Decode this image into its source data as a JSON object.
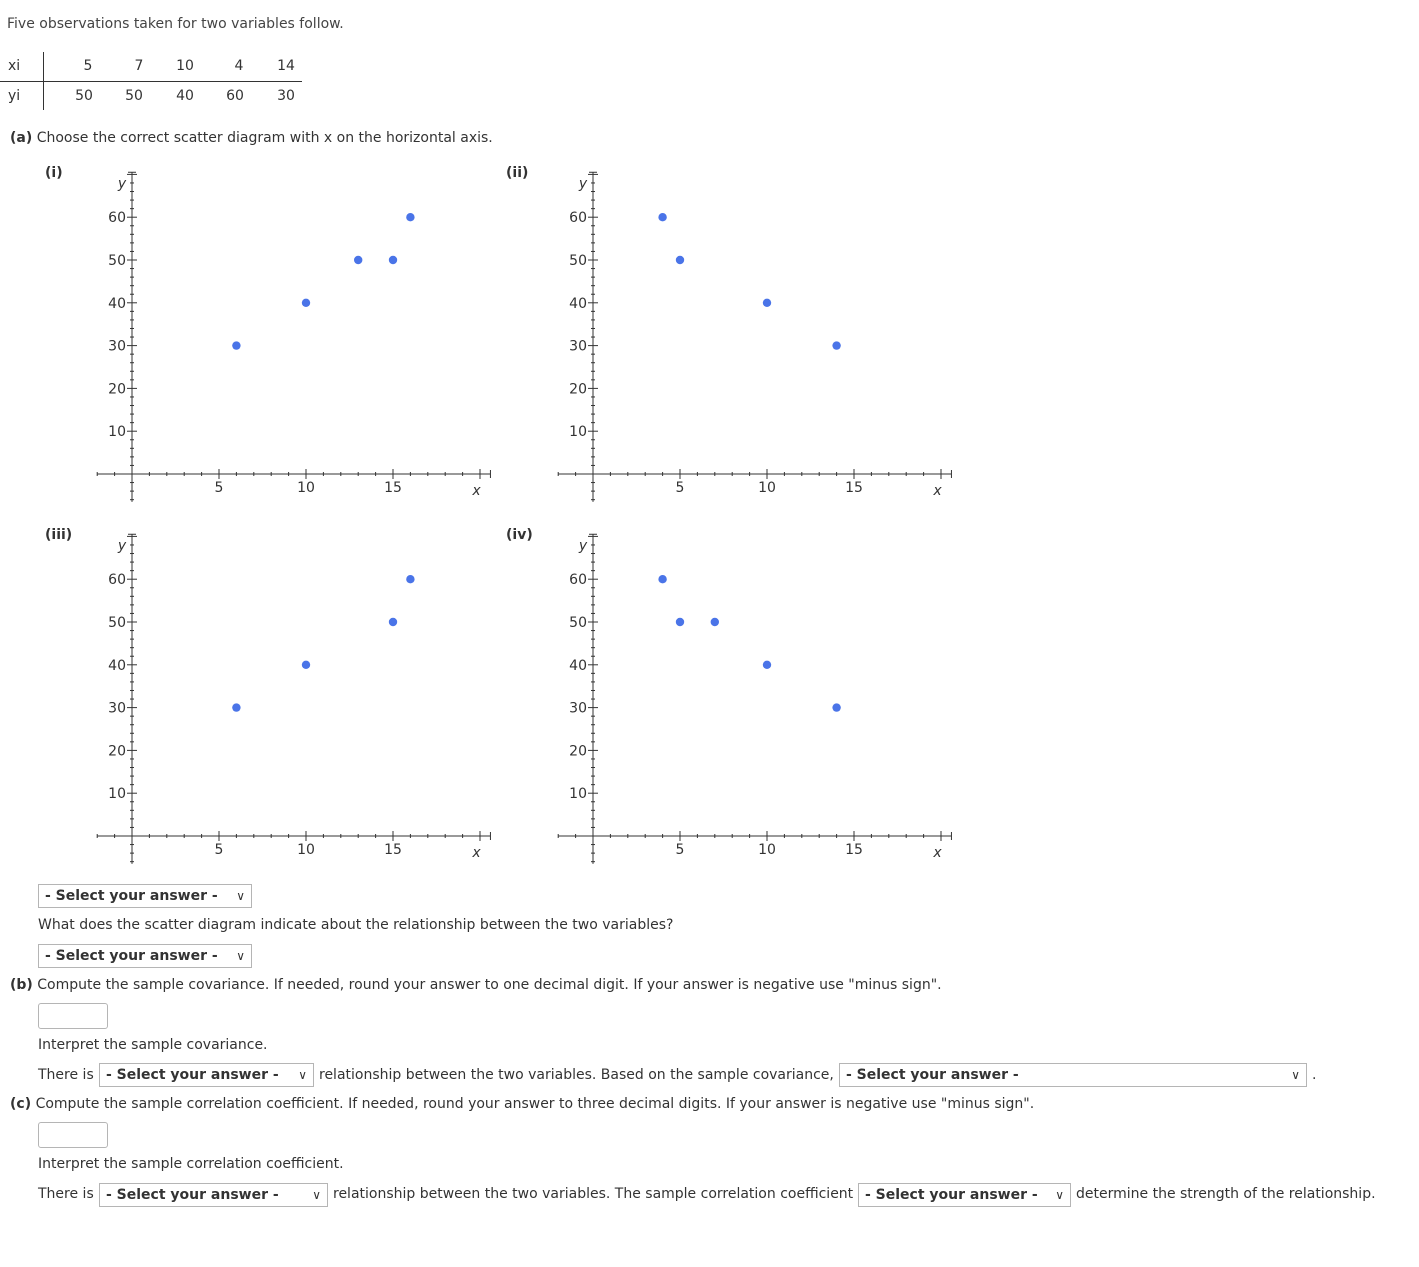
{
  "intro": "Five observations taken for two variables follow.",
  "table": {
    "x_label": "xi",
    "y_label": "yi",
    "x": [
      "5",
      "7",
      "10",
      "4",
      "14"
    ],
    "y": [
      "50",
      "50",
      "40",
      "60",
      "30"
    ]
  },
  "part_a": {
    "label": "(a)",
    "question": "Choose the correct scatter diagram with x on the horizontal axis.",
    "select_placeholder": "- Select your answer -",
    "relationship_question": "What does the scatter diagram indicate about the relationship between the two variables?"
  },
  "plots": [
    {
      "label": "(i)",
      "points": [
        [
          6,
          30
        ],
        [
          10,
          40
        ],
        [
          13,
          50
        ],
        [
          15,
          50
        ],
        [
          16,
          60
        ]
      ]
    },
    {
      "label": "(ii)",
      "points": [
        [
          4,
          60
        ],
        [
          5,
          50
        ],
        [
          10,
          40
        ],
        [
          14,
          30
        ]
      ]
    },
    {
      "label": "(iii)",
      "points": [
        [
          6,
          30
        ],
        [
          10,
          40
        ],
        [
          15,
          50
        ],
        [
          16,
          60
        ]
      ]
    },
    {
      "label": "(iv)",
      "points": [
        [
          4,
          60
        ],
        [
          5,
          50
        ],
        [
          7,
          50
        ],
        [
          10,
          40
        ],
        [
          14,
          30
        ]
      ]
    }
  ],
  "axes": {
    "x_name": "x",
    "y_name": "y",
    "x_ticks": [
      "5",
      "10",
      "15"
    ],
    "y_ticks": [
      "10",
      "20",
      "30",
      "40",
      "50",
      "60"
    ]
  },
  "chart_data": [
    {
      "type": "scatter",
      "title": "(i)",
      "x": [
        6,
        10,
        13,
        15,
        16
      ],
      "y": [
        30,
        40,
        50,
        50,
        60
      ],
      "xlabel": "x",
      "ylabel": "y"
    },
    {
      "type": "scatter",
      "title": "(ii)",
      "x": [
        4,
        5,
        10,
        14
      ],
      "y": [
        60,
        50,
        40,
        30
      ],
      "xlabel": "x",
      "ylabel": "y"
    },
    {
      "type": "scatter",
      "title": "(iii)",
      "x": [
        6,
        10,
        15,
        16
      ],
      "y": [
        30,
        40,
        50,
        60
      ],
      "xlabel": "x",
      "ylabel": "y"
    },
    {
      "type": "scatter",
      "title": "(iv)",
      "x": [
        4,
        5,
        7,
        10,
        14
      ],
      "y": [
        60,
        50,
        50,
        40,
        30
      ],
      "xlabel": "x",
      "ylabel": "y"
    }
  ],
  "part_b": {
    "label": "(b)",
    "question": "Compute the sample covariance. If needed, round your answer to one decimal digit. If your answer is negative use \"minus sign\".",
    "interpret": "Interpret the sample covariance.",
    "there_is": "There is",
    "middle": "relationship between the two variables. Based on the sample covariance,",
    "end": "."
  },
  "part_c": {
    "label": "(c)",
    "question": "Compute the sample correlation coefficient. If needed, round your answer to three decimal digits. If your answer is negative use \"minus sign\".",
    "interpret": "Interpret the sample correlation coefficient.",
    "there_is": "There is",
    "middle": "relationship between the two variables. The sample correlation coefficient",
    "end": "determine the strength of the relationship."
  },
  "colors": {
    "point": "#4a74e8"
  }
}
